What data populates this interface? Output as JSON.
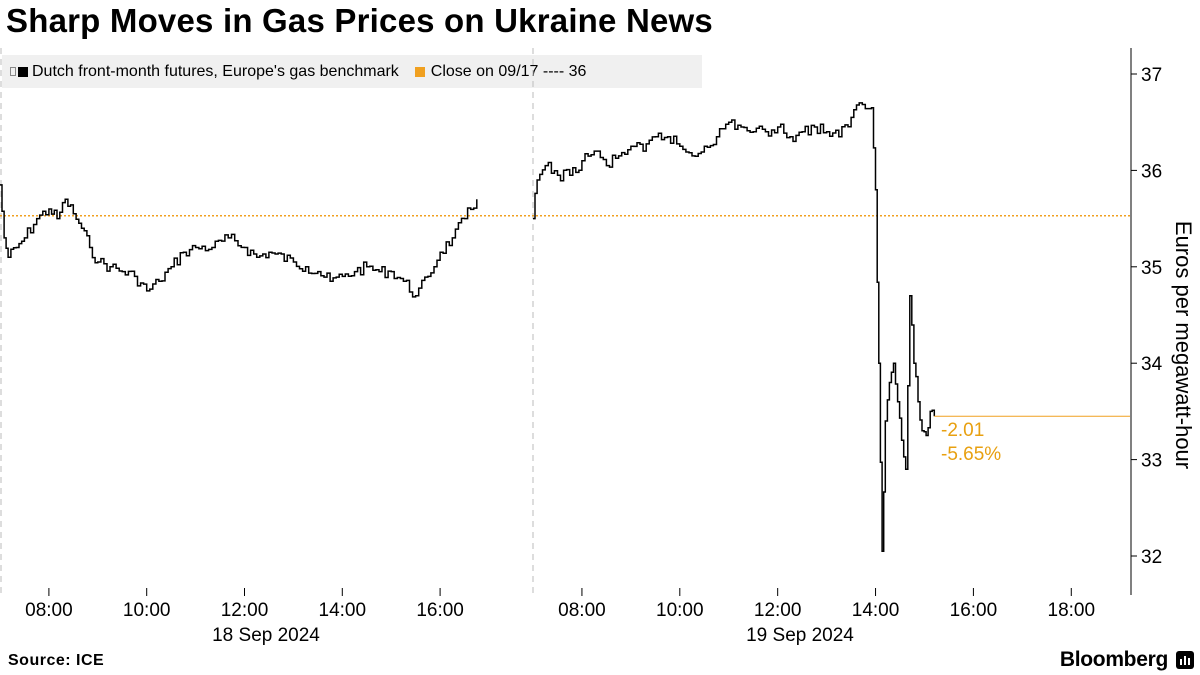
{
  "title": "Sharp Moves in Gas Prices on Ukraine News",
  "legend": {
    "series_label": "Dutch front-month futures, Europe's gas benchmark",
    "ref_label": "Close on 09/17 ---- 36"
  },
  "source": "Source: ICE",
  "brand": "Bloomberg",
  "colors": {
    "series": "#000000",
    "reference": "#f0a020",
    "annotation": "#e8a010",
    "legend_bg": "#f0f0f0"
  },
  "chart_data": {
    "type": "line",
    "ylabel": "Euros per megawatt-hour",
    "ylim": [
      31.8,
      37.2
    ],
    "yticks": [
      "32",
      "33",
      "34",
      "35",
      "36",
      "37"
    ],
    "reference_line": {
      "label": "Close on 09/17",
      "value": 35.53
    },
    "annotation": {
      "change": "-2.01",
      "pct": "-5.65%"
    },
    "sessions": [
      {
        "date_label": "18 Sep 2024",
        "ticks": [
          "08:00",
          "10:00",
          "12:00",
          "14:00",
          "16:00"
        ],
        "points": [
          [
            "07:00",
            35.85
          ],
          [
            "07:05",
            35.3
          ],
          [
            "07:10",
            35.1
          ],
          [
            "07:20",
            35.2
          ],
          [
            "07:30",
            35.3
          ],
          [
            "07:45",
            35.5
          ],
          [
            "08:00",
            35.6
          ],
          [
            "08:10",
            35.5
          ],
          [
            "08:20",
            35.7
          ],
          [
            "08:30",
            35.55
          ],
          [
            "08:40",
            35.4
          ],
          [
            "08:50",
            35.2
          ],
          [
            "09:00",
            35.05
          ],
          [
            "09:15",
            35.0
          ],
          [
            "09:30",
            34.95
          ],
          [
            "09:45",
            34.9
          ],
          [
            "10:00",
            34.75
          ],
          [
            "10:15",
            34.85
          ],
          [
            "10:30",
            35.0
          ],
          [
            "10:45",
            35.15
          ],
          [
            "11:00",
            35.2
          ],
          [
            "11:20",
            35.2
          ],
          [
            "11:40",
            35.3
          ],
          [
            "12:00",
            35.2
          ],
          [
            "12:15",
            35.1
          ],
          [
            "12:30",
            35.15
          ],
          [
            "13:00",
            35.05
          ],
          [
            "13:15",
            35.0
          ],
          [
            "13:30",
            34.95
          ],
          [
            "13:45",
            34.85
          ],
          [
            "14:00",
            34.9
          ],
          [
            "14:15",
            34.95
          ],
          [
            "14:30",
            35.0
          ],
          [
            "14:45",
            34.95
          ],
          [
            "15:00",
            34.95
          ],
          [
            "15:15",
            34.85
          ],
          [
            "15:30",
            34.7
          ],
          [
            "15:45",
            34.9
          ],
          [
            "16:00",
            35.15
          ],
          [
            "16:15",
            35.3
          ],
          [
            "16:30",
            35.5
          ],
          [
            "16:45",
            35.7
          ]
        ]
      },
      {
        "date_label": "19 Sep 2024",
        "ticks": [
          "08:00",
          "10:00",
          "12:00",
          "14:00",
          "16:00",
          "18:00"
        ],
        "points": [
          [
            "07:00",
            35.5
          ],
          [
            "07:05",
            35.9
          ],
          [
            "07:15",
            36.05
          ],
          [
            "07:30",
            35.95
          ],
          [
            "07:45",
            35.95
          ],
          [
            "08:00",
            36.1
          ],
          [
            "08:15",
            36.2
          ],
          [
            "08:30",
            36.05
          ],
          [
            "08:45",
            36.15
          ],
          [
            "09:00",
            36.25
          ],
          [
            "09:15",
            36.2
          ],
          [
            "09:30",
            36.35
          ],
          [
            "09:45",
            36.35
          ],
          [
            "10:00",
            36.25
          ],
          [
            "10:15",
            36.15
          ],
          [
            "10:30",
            36.25
          ],
          [
            "10:45",
            36.35
          ],
          [
            "11:00",
            36.5
          ],
          [
            "11:15",
            36.45
          ],
          [
            "11:30",
            36.4
          ],
          [
            "11:45",
            36.4
          ],
          [
            "12:00",
            36.45
          ],
          [
            "12:15",
            36.35
          ],
          [
            "12:30",
            36.4
          ],
          [
            "12:45",
            36.45
          ],
          [
            "13:00",
            36.4
          ],
          [
            "13:15",
            36.35
          ],
          [
            "13:30",
            36.55
          ],
          [
            "13:40",
            36.7
          ],
          [
            "13:55",
            36.65
          ],
          [
            "14:00",
            35.8
          ],
          [
            "14:04",
            34.0
          ],
          [
            "14:08",
            32.05
          ],
          [
            "14:12",
            33.4
          ],
          [
            "14:17",
            33.8
          ],
          [
            "14:22",
            34.0
          ],
          [
            "14:27",
            33.6
          ],
          [
            "14:32",
            33.2
          ],
          [
            "14:37",
            32.9
          ],
          [
            "14:42",
            34.7
          ],
          [
            "14:47",
            34.0
          ],
          [
            "14:52",
            33.6
          ],
          [
            "14:57",
            33.3
          ],
          [
            "15:02",
            33.25
          ],
          [
            "15:07",
            33.5
          ],
          [
            "15:12",
            33.45
          ]
        ]
      }
    ]
  }
}
